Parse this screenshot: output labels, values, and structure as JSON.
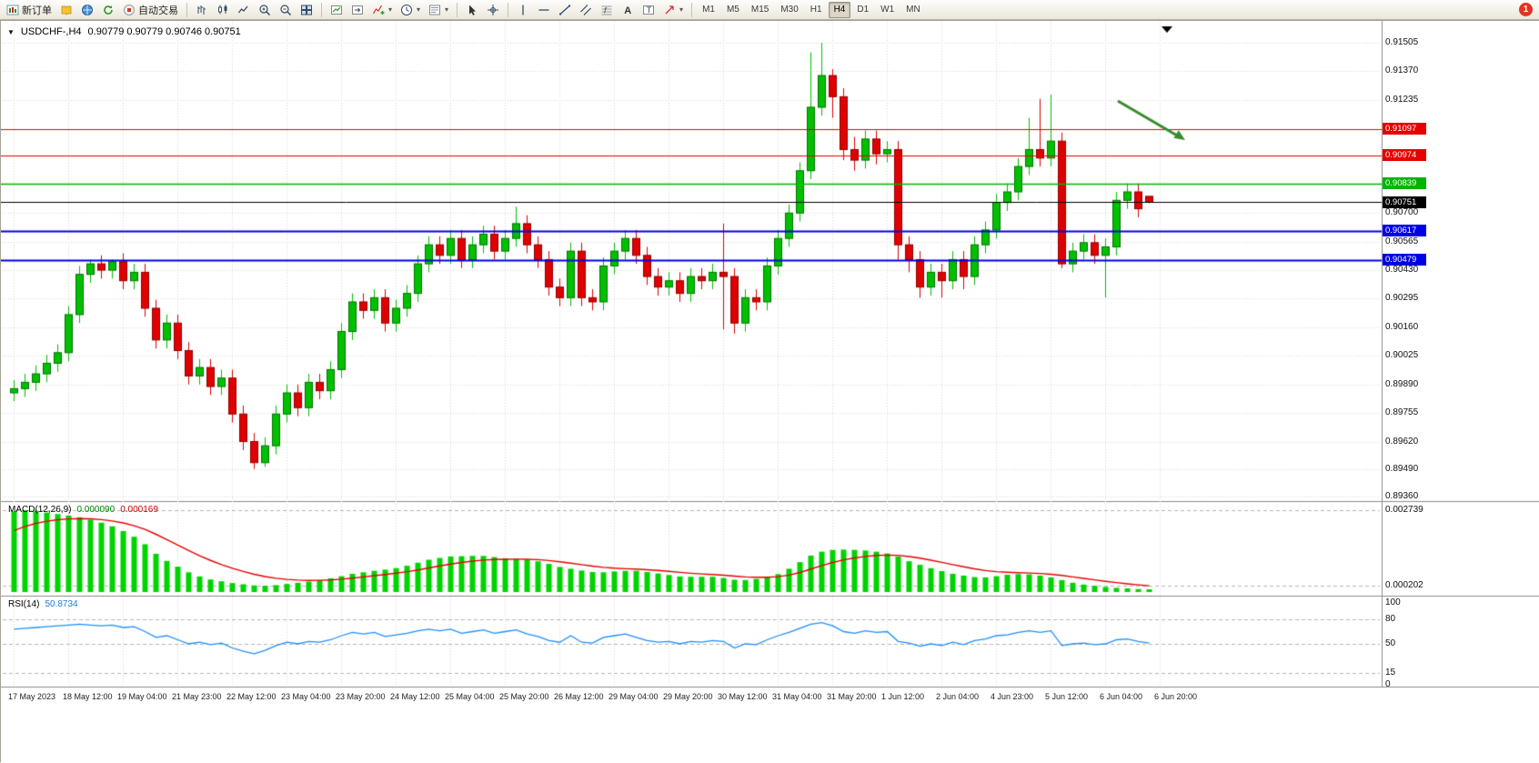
{
  "toolbar": {
    "items": [
      {
        "type": "btn",
        "name": "new-order-button",
        "icon": "new-order",
        "label": "新订单"
      },
      {
        "type": "btn",
        "name": "metaeditor-button",
        "icon": "book"
      },
      {
        "type": "btn",
        "name": "community-button",
        "icon": "globe"
      },
      {
        "type": "btn",
        "name": "refresh-button",
        "icon": "refresh"
      },
      {
        "type": "btn",
        "name": "autotrading-button",
        "icon": "autotrade",
        "label": "自动交易"
      },
      {
        "type": "sep"
      },
      {
        "type": "btn",
        "name": "bar-chart-button",
        "icon": "bars"
      },
      {
        "type": "btn",
        "name": "candlestick-chart-button",
        "icon": "candles"
      },
      {
        "type": "btn",
        "name": "line-chart-button",
        "icon": "linechart"
      },
      {
        "type": "btn",
        "name": "zoom-in-button",
        "icon": "zoom-in"
      },
      {
        "type": "btn",
        "name": "zoom-out-button",
        "icon": "zoom-out"
      },
      {
        "type": "btn",
        "name": "tile-windows-button",
        "icon": "tiles"
      },
      {
        "type": "sep"
      },
      {
        "type": "btn",
        "name": "auto-scroll-button",
        "icon": "chart-arrow"
      },
      {
        "type": "btn",
        "name": "chart-shift-button",
        "icon": "shift"
      },
      {
        "type": "btn",
        "name": "indicators-button",
        "icon": "indicator-plus",
        "caret": true
      },
      {
        "type": "btn",
        "name": "periods-button",
        "icon": "clock",
        "caret": true
      },
      {
        "type": "btn",
        "name": "templates-button",
        "icon": "template",
        "caret": true
      },
      {
        "type": "sep"
      },
      {
        "type": "btn",
        "name": "cursor-button",
        "icon": "cursor"
      },
      {
        "type": "btn",
        "name": "crosshair-button",
        "icon": "crosshair"
      },
      {
        "type": "sep"
      },
      {
        "type": "btn",
        "name": "vertical-line-button",
        "icon": "vline"
      },
      {
        "type": "btn",
        "name": "horizontal-line-button",
        "icon": "hline"
      },
      {
        "type": "btn",
        "name": "trendline-button",
        "icon": "trendline"
      },
      {
        "type": "btn",
        "name": "equidistant-channel-button",
        "icon": "channel"
      },
      {
        "type": "btn",
        "name": "fibonacci-button",
        "icon": "fib"
      },
      {
        "type": "btn",
        "name": "text-button",
        "icon": "text-a"
      },
      {
        "type": "btn",
        "name": "text-label-button",
        "icon": "label-t"
      },
      {
        "type": "btn",
        "name": "arrows-button",
        "icon": "arrow-tool",
        "caret": true
      },
      {
        "type": "sep"
      }
    ],
    "timeframes": [
      "M1",
      "M5",
      "M15",
      "M30",
      "H1",
      "H4",
      "D1",
      "W1",
      "MN"
    ],
    "active_timeframe": "H4",
    "notification_count": "1"
  },
  "chart_data": {
    "type": "candlestick",
    "symbol_title": "USDCHF-,H4",
    "ohlc_display": "0.90779 0.90779 0.90746 0.90751",
    "up_color": "#00c000",
    "down_color": "#e00000",
    "price_range": {
      "top": 0.91505,
      "bottom": 0.8936
    },
    "price_axis_labels": [
      "0.91505",
      "0.91370",
      "0.91235",
      "0.90700",
      "0.90565",
      "0.90430",
      "0.90295",
      "0.90160",
      "0.90025",
      "0.89890",
      "0.89755",
      "0.89620",
      "0.89490",
      "0.89360"
    ],
    "horizontal_lines": [
      {
        "label": "0.91097",
        "price": 0.91097,
        "color": "#e60000",
        "width": 1.2
      },
      {
        "label": "0.90974",
        "price": 0.90974,
        "color": "#e60000",
        "width": 1.2
      },
      {
        "label": "0.90839",
        "price": 0.90839,
        "color": "#00b400",
        "width": 1.6
      },
      {
        "label": "0.90751",
        "price": 0.90751,
        "color": "#000000",
        "width": 1
      },
      {
        "label": "0.90617",
        "price": 0.90617,
        "color": "#0000e6",
        "width": 2
      },
      {
        "label": "0.90479",
        "price": 0.90479,
        "color": "#0000e6",
        "width": 2
      }
    ],
    "annotation_arrow": {
      "color": "#3a8a2e"
    },
    "time_labels": [
      "17 May 2023",
      "18 May 12:00",
      "19 May 04:00",
      "21 May 23:00",
      "22 May 12:00",
      "23 May 04:00",
      "23 May 20:00",
      "24 May 12:00",
      "25 May 04:00",
      "25 May 20:00",
      "26 May 12:00",
      "29 May 04:00",
      "29 May 20:00",
      "30 May 12:00",
      "31 May 04:00",
      "31 May 20:00",
      "1 Jun 12:00",
      "2 Jun 04:00",
      "4 Jun 23:00",
      "5 Jun 12:00",
      "6 Jun 04:00",
      "6 Jun 20:00"
    ],
    "candles_ohlc": [
      [
        0.8985,
        0.8991,
        0.8981,
        0.8987
      ],
      [
        0.8987,
        0.8994,
        0.8983,
        0.899
      ],
      [
        0.899,
        0.8998,
        0.8986,
        0.8994
      ],
      [
        0.8994,
        0.9003,
        0.899,
        0.8999
      ],
      [
        0.8999,
        0.9008,
        0.8995,
        0.9004
      ],
      [
        0.9004,
        0.9026,
        0.9,
        0.9022
      ],
      [
        0.9022,
        0.9045,
        0.9018,
        0.9041
      ],
      [
        0.9041,
        0.9048,
        0.9037,
        0.9046
      ],
      [
        0.9046,
        0.905,
        0.9039,
        0.9043
      ],
      [
        0.9043,
        0.9048,
        0.9039,
        0.9047
      ],
      [
        0.9047,
        0.9051,
        0.9034,
        0.9038
      ],
      [
        0.9038,
        0.9046,
        0.9034,
        0.9042
      ],
      [
        0.9042,
        0.9046,
        0.9021,
        0.9025
      ],
      [
        0.9025,
        0.9029,
        0.9006,
        0.901
      ],
      [
        0.901,
        0.9022,
        0.9006,
        0.9018
      ],
      [
        0.9018,
        0.9022,
        0.9001,
        0.9005
      ],
      [
        0.9005,
        0.9009,
        0.8989,
        0.8993
      ],
      [
        0.8993,
        0.9001,
        0.8989,
        0.8997
      ],
      [
        0.8997,
        0.9001,
        0.8984,
        0.8988
      ],
      [
        0.8988,
        0.8996,
        0.8984,
        0.8992
      ],
      [
        0.8992,
        0.8996,
        0.8971,
        0.8975
      ],
      [
        0.8975,
        0.8979,
        0.8958,
        0.8962
      ],
      [
        0.8962,
        0.8966,
        0.8949,
        0.8952
      ],
      [
        0.8952,
        0.8964,
        0.895,
        0.896
      ],
      [
        0.896,
        0.8979,
        0.8956,
        0.8975
      ],
      [
        0.8975,
        0.8989,
        0.8971,
        0.8985
      ],
      [
        0.8985,
        0.8989,
        0.8974,
        0.8978
      ],
      [
        0.8978,
        0.8994,
        0.8974,
        0.899
      ],
      [
        0.899,
        0.8994,
        0.8982,
        0.8986
      ],
      [
        0.8986,
        0.9,
        0.8982,
        0.8996
      ],
      [
        0.8996,
        0.9018,
        0.8992,
        0.9014
      ],
      [
        0.9014,
        0.9032,
        0.901,
        0.9028
      ],
      [
        0.9028,
        0.9032,
        0.902,
        0.9024
      ],
      [
        0.9024,
        0.9034,
        0.902,
        0.903
      ],
      [
        0.903,
        0.9034,
        0.9014,
        0.9018
      ],
      [
        0.9018,
        0.9029,
        0.9014,
        0.9025
      ],
      [
        0.9025,
        0.9036,
        0.9021,
        0.9032
      ],
      [
        0.9032,
        0.905,
        0.9028,
        0.9046
      ],
      [
        0.9046,
        0.9059,
        0.9042,
        0.9055
      ],
      [
        0.9055,
        0.9059,
        0.9046,
        0.905
      ],
      [
        0.905,
        0.9062,
        0.9046,
        0.9058
      ],
      [
        0.9058,
        0.9062,
        0.9044,
        0.9048
      ],
      [
        0.9048,
        0.9059,
        0.9044,
        0.9055
      ],
      [
        0.9055,
        0.9064,
        0.9051,
        0.906
      ],
      [
        0.906,
        0.9064,
        0.9048,
        0.9052
      ],
      [
        0.9052,
        0.9062,
        0.9048,
        0.9058
      ],
      [
        0.9058,
        0.9073,
        0.9054,
        0.9065
      ],
      [
        0.9065,
        0.9069,
        0.9051,
        0.9055
      ],
      [
        0.9055,
        0.9059,
        0.9044,
        0.9048
      ],
      [
        0.9048,
        0.9052,
        0.9031,
        0.9035
      ],
      [
        0.9035,
        0.9039,
        0.9026,
        0.903
      ],
      [
        0.903,
        0.9056,
        0.9026,
        0.9052
      ],
      [
        0.9052,
        0.9056,
        0.9026,
        0.903
      ],
      [
        0.903,
        0.9034,
        0.9024,
        0.9028
      ],
      [
        0.9028,
        0.9049,
        0.9024,
        0.9045
      ],
      [
        0.9045,
        0.9056,
        0.9041,
        0.9052
      ],
      [
        0.9052,
        0.9062,
        0.9048,
        0.9058
      ],
      [
        0.9058,
        0.9062,
        0.9046,
        0.905
      ],
      [
        0.905,
        0.9054,
        0.9036,
        0.904
      ],
      [
        0.904,
        0.9044,
        0.9031,
        0.9035
      ],
      [
        0.9035,
        0.9042,
        0.9031,
        0.9038
      ],
      [
        0.9038,
        0.9042,
        0.9028,
        0.9032
      ],
      [
        0.9032,
        0.9044,
        0.9028,
        0.904
      ],
      [
        0.904,
        0.9044,
        0.9034,
        0.9038
      ],
      [
        0.9038,
        0.9046,
        0.9034,
        0.9042
      ],
      [
        0.9042,
        0.9065,
        0.9015,
        0.904
      ],
      [
        0.904,
        0.9044,
        0.9013,
        0.9018
      ],
      [
        0.9018,
        0.9034,
        0.9014,
        0.903
      ],
      [
        0.903,
        0.9034,
        0.9024,
        0.9028
      ],
      [
        0.9028,
        0.9049,
        0.9024,
        0.9045
      ],
      [
        0.9045,
        0.9062,
        0.9041,
        0.9058
      ],
      [
        0.9058,
        0.9074,
        0.9054,
        0.907
      ],
      [
        0.907,
        0.9094,
        0.9066,
        0.909
      ],
      [
        0.909,
        0.9146,
        0.9086,
        0.912
      ],
      [
        0.912,
        0.91505,
        0.9116,
        0.9135
      ],
      [
        0.9135,
        0.9138,
        0.9115,
        0.9125
      ],
      [
        0.9125,
        0.9129,
        0.9095,
        0.91
      ],
      [
        0.91,
        0.9106,
        0.909,
        0.9095
      ],
      [
        0.9095,
        0.9109,
        0.9091,
        0.9105
      ],
      [
        0.9105,
        0.9109,
        0.9093,
        0.9098
      ],
      [
        0.9098,
        0.9104,
        0.9094,
        0.91
      ],
      [
        0.91,
        0.9104,
        0.9048,
        0.9055
      ],
      [
        0.9055,
        0.9059,
        0.9042,
        0.9048
      ],
      [
        0.9048,
        0.9052,
        0.903,
        0.9035
      ],
      [
        0.9035,
        0.9046,
        0.9031,
        0.9042
      ],
      [
        0.9042,
        0.9046,
        0.903,
        0.9038
      ],
      [
        0.9038,
        0.9052,
        0.9034,
        0.9048
      ],
      [
        0.9048,
        0.9052,
        0.9034,
        0.904
      ],
      [
        0.904,
        0.9059,
        0.9036,
        0.9055
      ],
      [
        0.9055,
        0.9066,
        0.9051,
        0.9062
      ],
      [
        0.9062,
        0.9079,
        0.9058,
        0.9075
      ],
      [
        0.9075,
        0.9084,
        0.9071,
        0.908
      ],
      [
        0.908,
        0.9096,
        0.9076,
        0.9092
      ],
      [
        0.9092,
        0.9115,
        0.9088,
        0.91
      ],
      [
        0.91,
        0.9124,
        0.9092,
        0.9096
      ],
      [
        0.9096,
        0.9126,
        0.9092,
        0.9104
      ],
      [
        0.9104,
        0.9108,
        0.9044,
        0.9046
      ],
      [
        0.9046,
        0.9056,
        0.9042,
        0.9052
      ],
      [
        0.9052,
        0.906,
        0.9048,
        0.9056
      ],
      [
        0.9056,
        0.906,
        0.9046,
        0.905
      ],
      [
        0.905,
        0.9058,
        0.903,
        0.9054
      ],
      [
        0.9054,
        0.908,
        0.905,
        0.9076
      ],
      [
        0.9076,
        0.9084,
        0.9072,
        0.908
      ],
      [
        0.908,
        0.9084,
        0.9068,
        0.9072
      ],
      [
        0.90779,
        0.90779,
        0.90746,
        0.90751
      ]
    ],
    "macd": {
      "label": "MACD(12,26,9)",
      "main_value": "0.000090",
      "signal_value": "0.000169",
      "scale_labels": [
        "0.002739",
        "0.000202"
      ],
      "scale_max": 0.002739,
      "color": "#00d400",
      "signal_color": "#e60000",
      "histogram": [
        0.0027,
        0.00274,
        0.00271,
        0.00266,
        0.00261,
        0.00256,
        0.0025,
        0.00242,
        0.00232,
        0.0022,
        0.00204,
        0.00185,
        0.0016,
        0.00128,
        0.00104,
        0.00085,
        0.00066,
        0.00052,
        0.00042,
        0.00036,
        0.0003,
        0.00026,
        0.00022,
        0.00021,
        0.00023,
        0.00027,
        0.00031,
        0.00035,
        0.0004,
        0.00046,
        0.00053,
        0.00061,
        0.00066,
        0.00071,
        0.00075,
        0.0008,
        0.00088,
        0.00098,
        0.00108,
        0.00114,
        0.00119,
        0.0012,
        0.00121,
        0.00121,
        0.00117,
        0.00113,
        0.00111,
        0.00108,
        0.00103,
        0.00094,
        0.00084,
        0.00078,
        0.00072,
        0.00067,
        0.00066,
        0.00069,
        0.00071,
        0.00071,
        0.00067,
        0.00062,
        0.00057,
        0.00052,
        0.00051,
        0.00051,
        0.00051,
        0.00047,
        0.00041,
        0.0004,
        0.00044,
        0.0005,
        0.0006,
        0.00078,
        0.001,
        0.00122,
        0.00135,
        0.00141,
        0.00142,
        0.00141,
        0.00139,
        0.00135,
        0.00129,
        0.00119,
        0.00103,
        0.00091,
        0.0008,
        0.0007,
        0.00061,
        0.00055,
        0.0005,
        0.00049,
        0.00053,
        0.00058,
        0.0006,
        0.00059,
        0.00055,
        0.00049,
        0.0004,
        0.00031,
        0.00025,
        0.00021,
        0.00017,
        0.00014,
        0.00012,
        0.0001,
        9e-05
      ]
    },
    "rsi": {
      "label": "RSI(14)",
      "current": "50.8734",
      "color": "#1e8fff",
      "levels": [
        100,
        80,
        50,
        15,
        0
      ],
      "dashed_levels": [
        80,
        50,
        15
      ],
      "series": [
        68,
        69,
        70,
        71,
        72,
        73,
        74,
        73,
        72,
        73,
        70,
        71,
        65,
        58,
        60,
        55,
        50,
        52,
        49,
        51,
        45,
        41,
        38,
        42,
        48,
        52,
        50,
        53,
        52,
        55,
        60,
        64,
        62,
        64,
        59,
        61,
        63,
        66,
        68,
        66,
        68,
        63,
        65,
        67,
        63,
        65,
        67,
        62,
        59,
        54,
        52,
        60,
        52,
        51,
        58,
        60,
        62,
        58,
        54,
        52,
        53,
        50,
        53,
        52,
        54,
        53,
        45,
        50,
        49,
        55,
        60,
        64,
        69,
        74,
        76,
        72,
        65,
        63,
        66,
        64,
        65,
        53,
        51,
        47,
        50,
        48,
        52,
        49,
        54,
        56,
        60,
        61,
        64,
        66,
        64,
        66,
        48,
        50,
        51,
        49,
        50,
        55,
        56,
        53,
        50.87
      ]
    }
  }
}
